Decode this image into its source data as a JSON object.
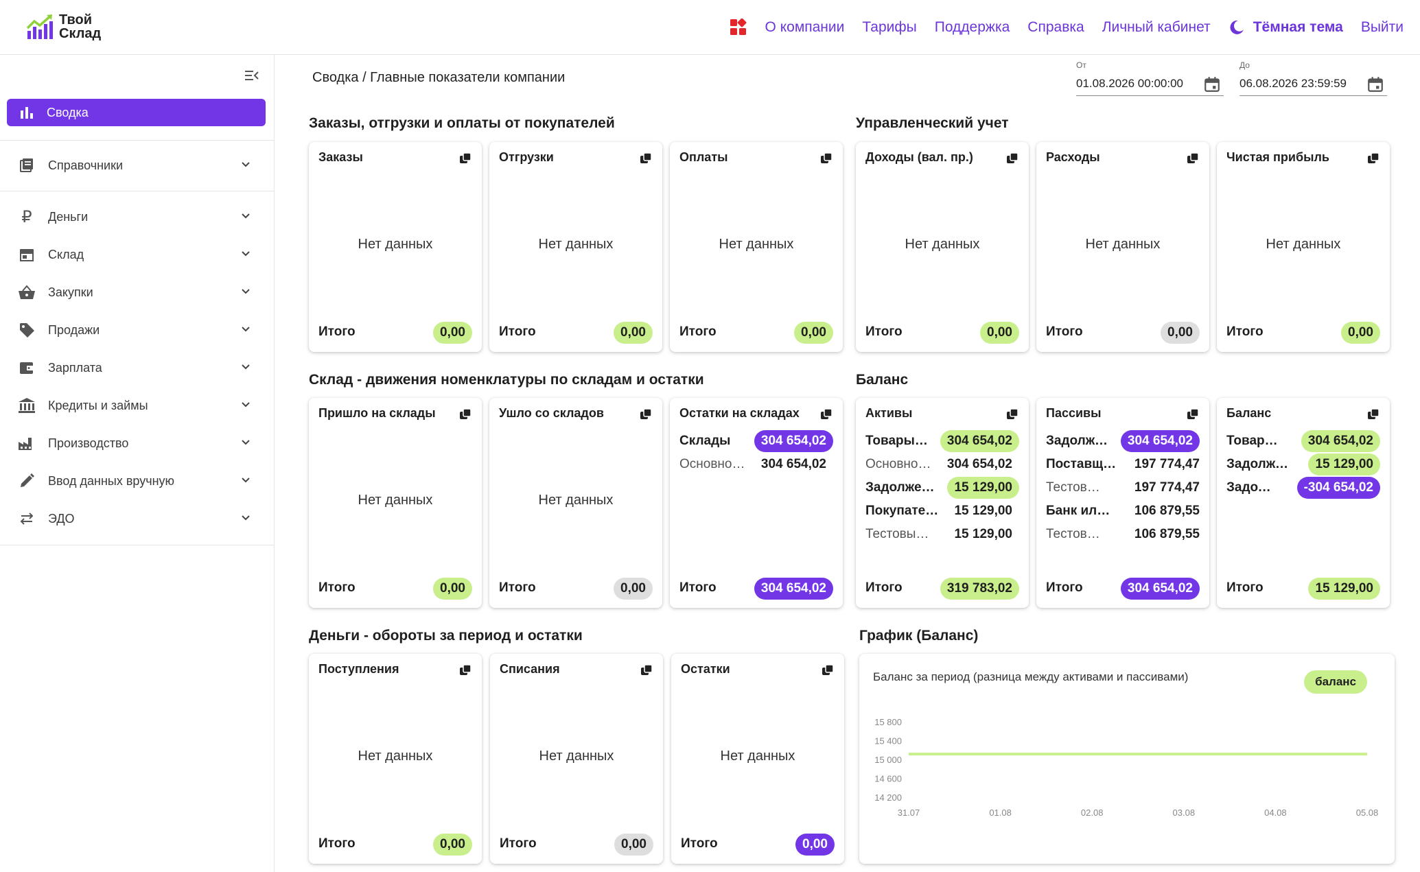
{
  "header": {
    "logo_line1": "Твой",
    "logo_line2": "Склад",
    "nav": [
      "О компании",
      "Тарифы",
      "Поддержка",
      "Справка",
      "Личный кабинет"
    ],
    "theme_label": "Тёмная тема",
    "logout_label": "Выйти",
    "colors": {
      "accent": "#6c35d9",
      "apps_icon": "#e3262b"
    }
  },
  "sidebar": {
    "active": {
      "label": "Сводка",
      "icon": "bar-chart-icon"
    },
    "items": [
      {
        "label": "Справочники",
        "icon": "book-icon"
      },
      {
        "label": "Деньги",
        "icon": "ruble-icon"
      },
      {
        "label": "Склад",
        "icon": "store-icon"
      },
      {
        "label": "Закупки",
        "icon": "basket-icon"
      },
      {
        "label": "Продажи",
        "icon": "tag-icon"
      },
      {
        "label": "Зарплата",
        "icon": "wallet-icon"
      },
      {
        "label": "Кредиты и займы",
        "icon": "bank-icon"
      },
      {
        "label": "Производство",
        "icon": "factory-icon"
      },
      {
        "label": "Ввод данных вручную",
        "icon": "pencil-icon"
      },
      {
        "label": "ЭДО",
        "icon": "swap-icon"
      }
    ]
  },
  "main": {
    "breadcrumb": "Сводка / Главные показатели компании",
    "date_from": {
      "label": "От",
      "value": "01.08.2026 00:00:00"
    },
    "date_to": {
      "label": "До",
      "value": "06.08.2026 23:59:59"
    },
    "no_data": "Нет данных",
    "total_label": "Итого",
    "sections": {
      "orders": "Заказы, отгрузки и оплаты от покупателей",
      "management": "Управленческий учет",
      "stock": "Склад - движения номенклатуры по складам и остатки",
      "balance": "Баланс",
      "money": "Деньги - обороты за период и остатки",
      "chart": "График (Баланс)"
    },
    "cards": {
      "orders": {
        "title": "Заказы",
        "total": "0,00"
      },
      "shipments": {
        "title": "Отгрузки",
        "total": "0,00"
      },
      "payments": {
        "title": "Оплаты",
        "total": "0,00"
      },
      "income": {
        "title": "Доходы (вал. пр.)",
        "total": "0,00"
      },
      "expenses": {
        "title": "Расходы",
        "total": "0,00"
      },
      "profit": {
        "title": "Чистая прибыль",
        "total": "0,00"
      },
      "stock_in": {
        "title": "Пришло на склады",
        "total": "0,00"
      },
      "stock_out": {
        "title": "Ушло со складов",
        "total": "0,00"
      },
      "stock_rest": {
        "title": "Остатки на складах",
        "rows": [
          {
            "label": "Склады",
            "value": "304 654,02"
          },
          {
            "label": "Основной склад",
            "value": "304 654,02"
          }
        ],
        "total": "304 654,02"
      },
      "assets": {
        "title": "Активы",
        "rows": [
          {
            "label": "Товары на складах",
            "value": "304 654,02"
          },
          {
            "label": "Основной склад",
            "value": "304 654,02"
          },
          {
            "label": "Задолженность покупателей",
            "value": "15 129,00"
          },
          {
            "label": "Покупатель",
            "value": "15 129,00"
          },
          {
            "label": "Тестовый покупатель",
            "value": "15 129,00"
          }
        ],
        "total": "319 783,02"
      },
      "liabilities": {
        "title": "Пассивы",
        "rows": [
          {
            "label": "Задолженность поставщикам",
            "value": "304 654,02"
          },
          {
            "label": "Поставщик",
            "value": "197 774,47"
          },
          {
            "label": "Тестовый поставщик",
            "value": "197 774,47"
          },
          {
            "label": "Банк или кредитор",
            "value": "106 879,55"
          },
          {
            "label": "Тестовый банк",
            "value": "106 879,55"
          }
        ],
        "total": "304 654,02"
      },
      "balance": {
        "title": "Баланс",
        "rows": [
          {
            "label": "Товары на складах",
            "value": "304 654,02"
          },
          {
            "label": "Задолженность покупателей",
            "value": "15 129,00"
          },
          {
            "label": "Задолженность поставщикам",
            "value": "-304 654,02"
          }
        ],
        "total": "15 129,00"
      },
      "money_in": {
        "title": "Поступления",
        "total": "0,00"
      },
      "money_out": {
        "title": "Списания",
        "total": "0,00"
      },
      "money_rest": {
        "title": "Остатки",
        "total": "0,00"
      }
    },
    "pill_colors": {
      "green": "#c9ef8c",
      "gray": "#dedede",
      "purple": "#7236e6"
    }
  },
  "chart_data": {
    "type": "line",
    "title": "Баланс за период (разница между активами и пассивами)",
    "categories": [
      "31.07",
      "01.08",
      "02.08",
      "03.08",
      "04.08",
      "05.08"
    ],
    "series": [
      {
        "name": "баланс",
        "values": [
          15129,
          15129,
          15129,
          15129,
          15129,
          15129
        ],
        "color": "#c9ef8c"
      }
    ],
    "y_ticks": [
      "15 800",
      "15 400",
      "15 000",
      "14 600",
      "14 200"
    ],
    "ylim": [
      14200,
      15800
    ],
    "legend": "top-right",
    "grid": false
  }
}
